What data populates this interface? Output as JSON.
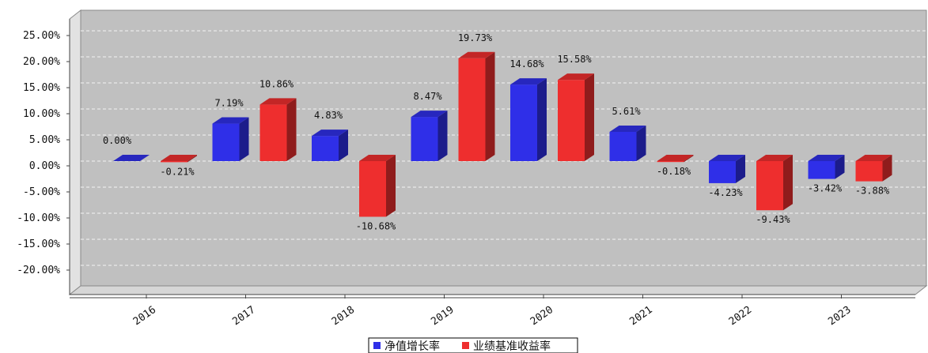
{
  "chart_data": {
    "type": "bar",
    "categories": [
      "2016",
      "2017",
      "2018",
      "2019",
      "2020",
      "2021",
      "2022",
      "2023"
    ],
    "series": [
      {
        "name": "净值增长率",
        "color": "#2f2fe8",
        "values": [
          0.0,
          7.19,
          4.83,
          8.47,
          14.68,
          5.61,
          -4.23,
          -3.42
        ]
      },
      {
        "name": "业绩基准收益率",
        "color": "#ee2e2e",
        "values": [
          -0.21,
          10.86,
          -10.68,
          19.73,
          15.58,
          -0.18,
          -9.43,
          -3.88
        ]
      }
    ],
    "value_labels": [
      [
        "0.00%",
        "7.19%",
        "4.83%",
        "8.47%",
        "14.68%",
        "5.61%",
        "-4.23%",
        "-3.42%"
      ],
      [
        "-0.21%",
        "10.86%",
        "-10.68%",
        "19.73%",
        "15.58%",
        "-0.18%",
        "-9.43%",
        "-3.88%"
      ]
    ],
    "y_ticks": [
      "25.00%",
      "20.00%",
      "15.00%",
      "10.00%",
      "5.00%",
      "0.00%",
      "-5.00%",
      "-10.00%",
      "-15.00%",
      "-20.00%"
    ],
    "y_tick_values": [
      25,
      20,
      15,
      10,
      5,
      0,
      -5,
      -10,
      -15,
      -20
    ],
    "ylim": [
      -25,
      27
    ],
    "grid": true,
    "legend_position": "bottom-center",
    "plot_bg": "#c0c0c0"
  }
}
